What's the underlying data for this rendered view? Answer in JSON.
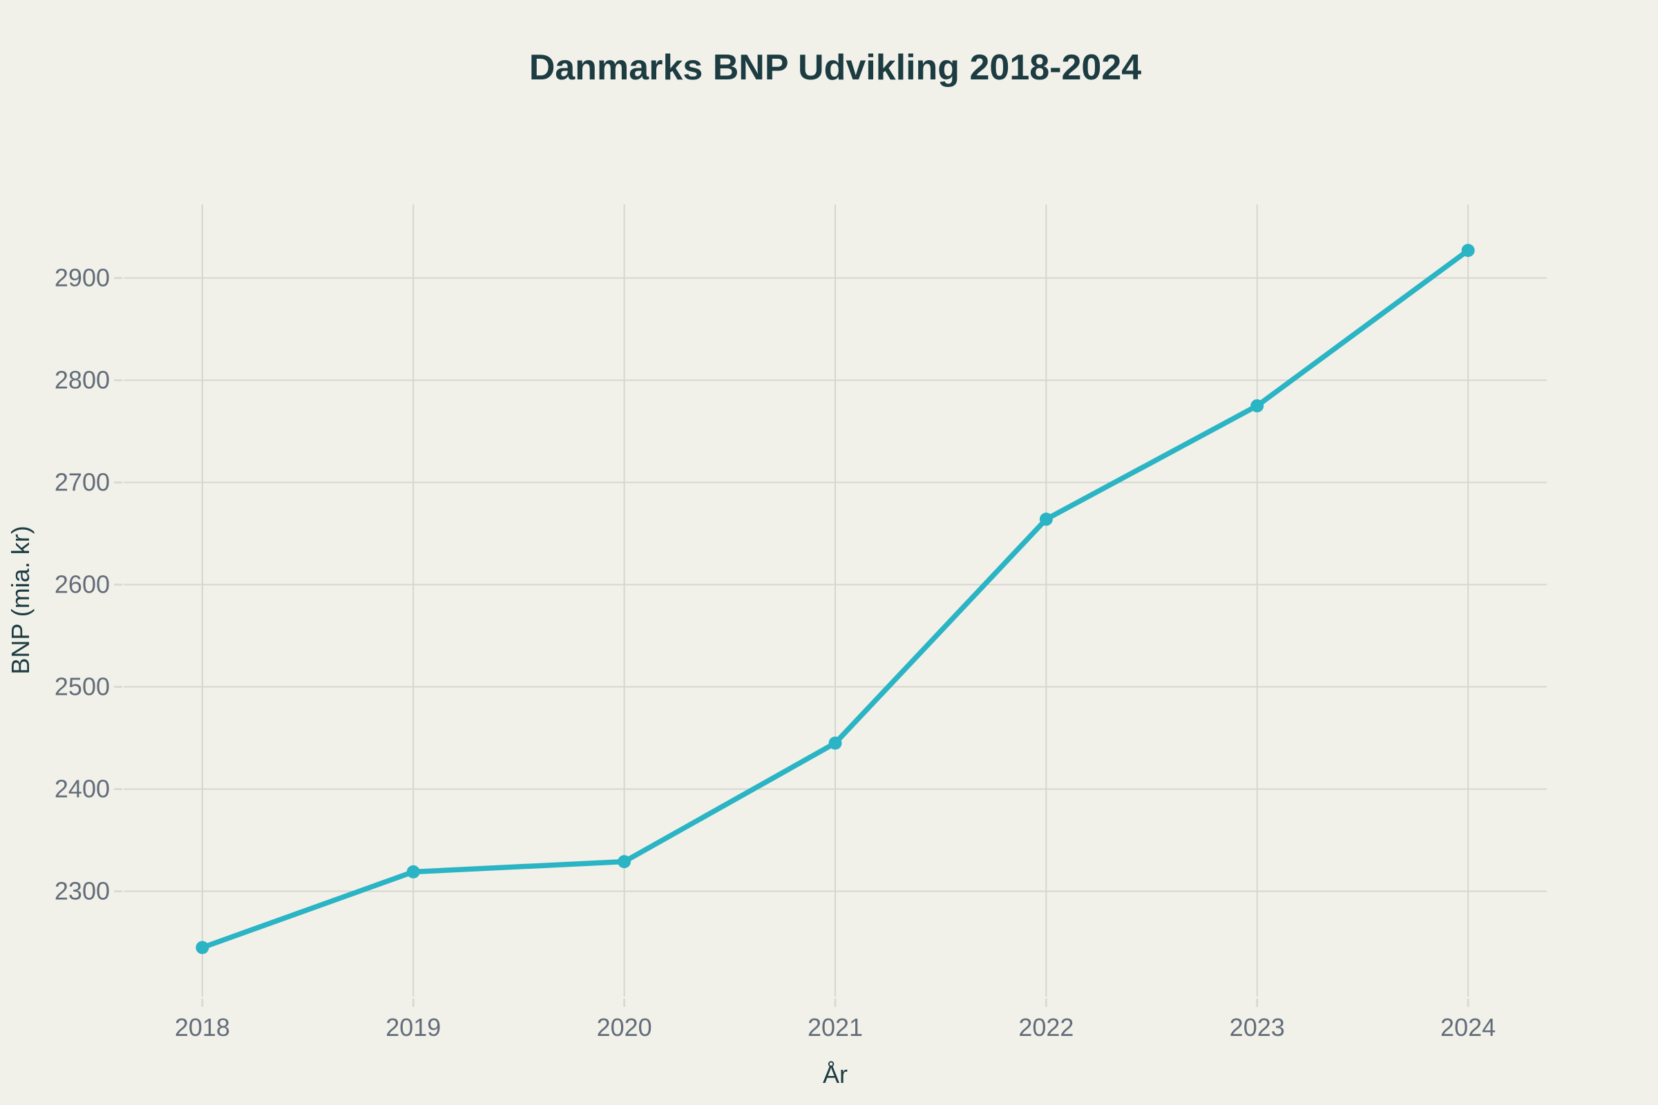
{
  "colors": {
    "background": "#f1f1ea",
    "line": "#2ab4c4",
    "title_text": "#1d3c42",
    "axis_title_text": "#1d3c42",
    "tick_text": "#636d79",
    "gridline": "#d6d6d0",
    "tick_mark": "#dadad4"
  },
  "chart_data": {
    "type": "line",
    "title": "Danmarks BNP Udvikling 2018-2024",
    "xlabel": "År",
    "ylabel": "BNP (mia. kr)",
    "x": [
      2018,
      2019,
      2020,
      2021,
      2022,
      2023,
      2024
    ],
    "x_tick_labels": [
      "2018",
      "2019",
      "2020",
      "2021",
      "2022",
      "2023",
      "2024"
    ],
    "series": [
      {
        "name": "BNP (mia. kr)",
        "values": [
          2245,
          2319,
          2329,
          2445,
          2664,
          2775,
          2927
        ]
      }
    ],
    "y_ticks": [
      2300,
      2400,
      2500,
      2600,
      2700,
      2800,
      2900
    ],
    "y_tick_labels": [
      "2300",
      "2400",
      "2500",
      "2600",
      "2700",
      "2800",
      "2900"
    ],
    "xlim": [
      2017.627,
      2024.373
    ],
    "ylim": [
      2197,
      2972
    ],
    "grid": true,
    "legend": false,
    "marker": "circle"
  }
}
